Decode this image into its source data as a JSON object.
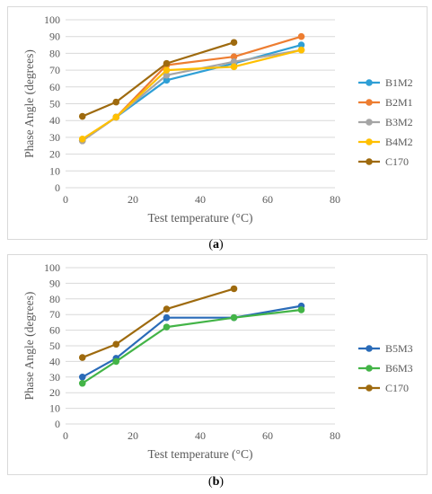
{
  "colors": {
    "B1M2": "#2e9fd6",
    "B2M1": "#ed7d31",
    "B3M2": "#a5a5a5",
    "B4M2": "#ffc000",
    "C170": "#9e6a0e",
    "B5M3": "#2a6bb8",
    "B6M3": "#43b447",
    "grid": "#d9d9d9",
    "text": "#595959"
  },
  "captions": {
    "a": "(a)",
    "b": "(b)",
    "a_letter": "a",
    "b_letter": "b"
  },
  "chart_data": [
    {
      "type": "line",
      "title": "",
      "xlabel": "Test temperature (°C)",
      "ylabel": "Phase Angle (degrees)",
      "xlim": [
        0,
        80
      ],
      "ylim": [
        0,
        100
      ],
      "x_ticks": [
        "0",
        "20",
        "40",
        "60",
        "80"
      ],
      "y_ticks": [
        "0",
        "10",
        "20",
        "30",
        "40",
        "50",
        "60",
        "70",
        "80",
        "90",
        "100"
      ],
      "grid": true,
      "legend_position": "right",
      "series": [
        {
          "name": "B1M2",
          "x": [
            5,
            15,
            30,
            50,
            70
          ],
          "values": [
            28,
            42,
            64,
            74,
            85
          ]
        },
        {
          "name": "B2M1",
          "x": [
            5,
            15,
            30,
            50,
            70
          ],
          "values": [
            28,
            42,
            73,
            78,
            90
          ]
        },
        {
          "name": "B3M2",
          "x": [
            5,
            15,
            30,
            50,
            70
          ],
          "values": [
            28,
            42,
            67,
            75,
            82
          ]
        },
        {
          "name": "B4M2",
          "x": [
            5,
            15,
            30,
            50,
            70
          ],
          "values": [
            29,
            42,
            70,
            72,
            82
          ]
        },
        {
          "name": "C170",
          "x": [
            5,
            15,
            30,
            50
          ],
          "values": [
            42.5,
            51,
            74,
            86.5
          ]
        }
      ]
    },
    {
      "type": "line",
      "title": "",
      "xlabel": "Test temperature (°C)",
      "ylabel": "Phase Angle (degrees)",
      "xlim": [
        0,
        80
      ],
      "ylim": [
        0,
        100
      ],
      "x_ticks": [
        "0",
        "20",
        "40",
        "60",
        "80"
      ],
      "y_ticks": [
        "0",
        "10",
        "20",
        "30",
        "40",
        "50",
        "60",
        "70",
        "80",
        "90",
        "100"
      ],
      "grid": true,
      "legend_position": "right",
      "series": [
        {
          "name": "B5M3",
          "x": [
            5,
            15,
            30,
            50,
            70
          ],
          "values": [
            30,
            42,
            68,
            68,
            75.5
          ]
        },
        {
          "name": "B6M3",
          "x": [
            5,
            15,
            30,
            50,
            70
          ],
          "values": [
            26,
            40,
            62,
            68,
            73
          ]
        },
        {
          "name": "C170",
          "x": [
            5,
            15,
            30,
            50
          ],
          "values": [
            42.5,
            51,
            73.5,
            86.5
          ]
        }
      ]
    }
  ]
}
